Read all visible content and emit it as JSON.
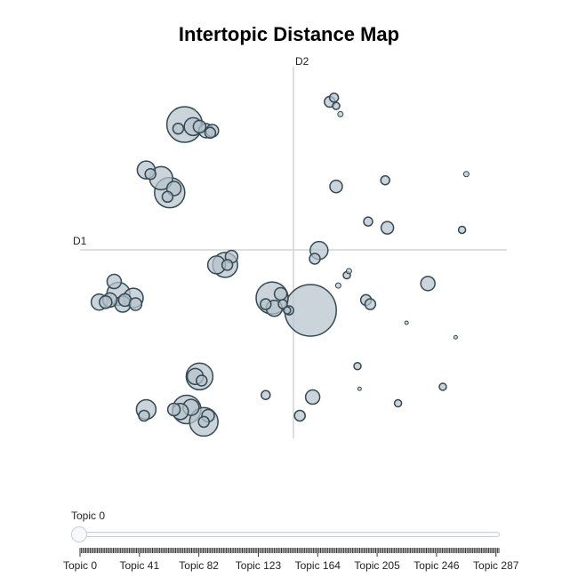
{
  "chart_data": {
    "type": "scatter",
    "title": "Intertopic Distance Map",
    "xlabel": "D1",
    "ylabel": "D2",
    "xlim": [
      -10,
      10
    ],
    "ylim": [
      -9,
      9
    ],
    "colors": {
      "fill": "#b7c2cc",
      "stroke": "#324a52",
      "axis": "#d3d3d3"
    },
    "points": [
      {
        "x": -5.1,
        "y": 6.2,
        "size": 20
      },
      {
        "x": -4.7,
        "y": 6.1,
        "size": 10
      },
      {
        "x": -4.4,
        "y": 6.1,
        "size": 7
      },
      {
        "x": -4.1,
        "y": 5.9,
        "size": 8
      },
      {
        "x": -3.8,
        "y": 5.9,
        "size": 7
      },
      {
        "x": -3.9,
        "y": 5.8,
        "size": 6
      },
      {
        "x": -5.4,
        "y": 6.0,
        "size": 6
      },
      {
        "x": -6.2,
        "y": 3.6,
        "size": 13
      },
      {
        "x": -6.9,
        "y": 4.0,
        "size": 10
      },
      {
        "x": -5.8,
        "y": 2.9,
        "size": 17
      },
      {
        "x": -5.6,
        "y": 3.1,
        "size": 8
      },
      {
        "x": -5.9,
        "y": 2.7,
        "size": 6
      },
      {
        "x": -6.7,
        "y": 3.8,
        "size": 6
      },
      {
        "x": 1.7,
        "y": 7.3,
        "size": 6
      },
      {
        "x": 1.9,
        "y": 7.5,
        "size": 5
      },
      {
        "x": 2.0,
        "y": 7.1,
        "size": 4
      },
      {
        "x": 2.2,
        "y": 6.7,
        "size": 3
      },
      {
        "x": 2.0,
        "y": 3.2,
        "size": 7
      },
      {
        "x": 4.3,
        "y": 3.5,
        "size": 5
      },
      {
        "x": 8.1,
        "y": 3.8,
        "size": 3
      },
      {
        "x": 3.5,
        "y": 1.5,
        "size": 5
      },
      {
        "x": 4.4,
        "y": 1.2,
        "size": 7
      },
      {
        "x": 7.9,
        "y": 1.1,
        "size": 4
      },
      {
        "x": 1.2,
        "y": 0.1,
        "size": 10
      },
      {
        "x": 1.0,
        "y": -0.3,
        "size": 6
      },
      {
        "x": -3.2,
        "y": -0.6,
        "size": 14
      },
      {
        "x": -3.6,
        "y": -0.6,
        "size": 10
      },
      {
        "x": -2.9,
        "y": -0.2,
        "size": 7
      },
      {
        "x": -3.1,
        "y": -0.6,
        "size": 6
      },
      {
        "x": -8.4,
        "y": -1.4,
        "size": 8
      },
      {
        "x": -8.2,
        "y": -2.0,
        "size": 13
      },
      {
        "x": -7.5,
        "y": -2.2,
        "size": 11
      },
      {
        "x": -8.6,
        "y": -2.3,
        "size": 8
      },
      {
        "x": -8.0,
        "y": -2.5,
        "size": 9
      },
      {
        "x": -7.9,
        "y": -2.3,
        "size": 7
      },
      {
        "x": -9.1,
        "y": -2.4,
        "size": 9
      },
      {
        "x": -8.8,
        "y": -2.4,
        "size": 7
      },
      {
        "x": -7.4,
        "y": -2.5,
        "size": 7
      },
      {
        "x": -1.0,
        "y": -2.2,
        "size": 18
      },
      {
        "x": -0.9,
        "y": -2.7,
        "size": 9
      },
      {
        "x": -0.6,
        "y": -2.0,
        "size": 7
      },
      {
        "x": -1.3,
        "y": -2.5,
        "size": 6
      },
      {
        "x": -0.5,
        "y": -2.5,
        "size": 5
      },
      {
        "x": -0.2,
        "y": -2.8,
        "size": 5
      },
      {
        "x": -0.3,
        "y": -2.8,
        "size": 4
      },
      {
        "x": 0.8,
        "y": -2.8,
        "size": 29
      },
      {
        "x": 2.5,
        "y": -1.1,
        "size": 4
      },
      {
        "x": 2.6,
        "y": -0.9,
        "size": 3
      },
      {
        "x": 2.1,
        "y": -1.6,
        "size": 3
      },
      {
        "x": 6.3,
        "y": -1.5,
        "size": 8
      },
      {
        "x": 3.4,
        "y": -2.3,
        "size": 6
      },
      {
        "x": 3.6,
        "y": -2.5,
        "size": 6
      },
      {
        "x": 5.3,
        "y": -3.4,
        "size": 2
      },
      {
        "x": 7.6,
        "y": -4.1,
        "size": 2
      },
      {
        "x": -4.4,
        "y": -6.0,
        "size": 15
      },
      {
        "x": -4.6,
        "y": -6.0,
        "size": 9
      },
      {
        "x": -4.3,
        "y": -6.2,
        "size": 6
      },
      {
        "x": -5.0,
        "y": -7.6,
        "size": 16
      },
      {
        "x": -4.8,
        "y": -7.5,
        "size": 9
      },
      {
        "x": -5.3,
        "y": -7.7,
        "size": 9
      },
      {
        "x": -5.6,
        "y": -7.6,
        "size": 7
      },
      {
        "x": -4.2,
        "y": -8.2,
        "size": 16
      },
      {
        "x": -4.0,
        "y": -7.9,
        "size": 7
      },
      {
        "x": -4.2,
        "y": -8.2,
        "size": 6
      },
      {
        "x": -6.9,
        "y": -7.6,
        "size": 11
      },
      {
        "x": -7.0,
        "y": -7.9,
        "size": 6
      },
      {
        "x": -1.3,
        "y": -6.9,
        "size": 5
      },
      {
        "x": 0.9,
        "y": -7.0,
        "size": 8
      },
      {
        "x": 0.3,
        "y": -7.9,
        "size": 6
      },
      {
        "x": 3.0,
        "y": -5.5,
        "size": 4
      },
      {
        "x": 3.1,
        "y": -6.6,
        "size": 2
      },
      {
        "x": 4.9,
        "y": -7.3,
        "size": 4
      },
      {
        "x": 7.0,
        "y": -6.5,
        "size": 4
      }
    ]
  },
  "slider": {
    "label": "Topic 0",
    "tick_labels": [
      "Topic 0",
      "Topic 41",
      "Topic 82",
      "Topic 123",
      "Topic 164",
      "Topic 205",
      "Topic 246",
      "Topic 287"
    ]
  }
}
